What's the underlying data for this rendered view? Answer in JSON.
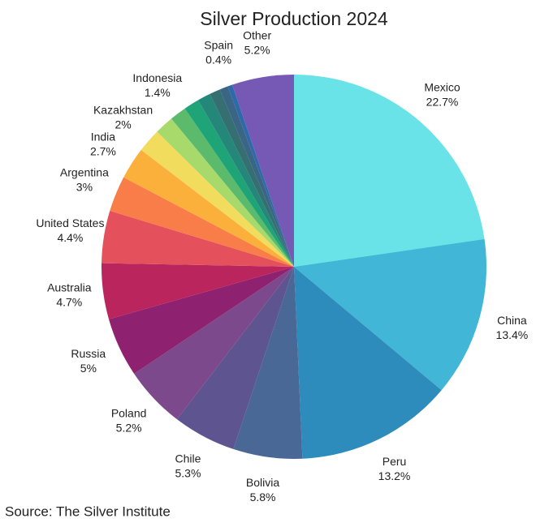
{
  "chart_data": {
    "type": "pie",
    "title": "Silver Production 2024",
    "categories": [
      "Mexico",
      "China",
      "Peru",
      "Bolivia",
      "Chile",
      "Poland",
      "Russia",
      "Australia",
      "United States",
      "Argentina",
      "India",
      "Kazakhstan",
      null,
      "Indonesia",
      null,
      null,
      null,
      null,
      "Spain",
      "Other"
    ],
    "values": [
      22.7,
      13.4,
      13.2,
      5.8,
      5.3,
      5.2,
      5,
      4.7,
      4.4,
      3,
      2.7,
      2,
      1.6,
      1.4,
      1.3,
      1.1,
      0.9,
      0.7,
      0.4,
      5.2
    ],
    "value_labels": [
      "22.7%",
      "13.4%",
      "13.2%",
      "5.8%",
      "5.3%",
      "5.2%",
      "5%",
      "4.7%",
      "4.4%",
      "3%",
      "2.7%",
      "2%",
      null,
      "1.4%",
      null,
      null,
      null,
      null,
      "0.4%",
      "5.2%"
    ],
    "colors": [
      "#69e3e8",
      "#41b6d6",
      "#2e8cbd",
      "#4a6895",
      "#5e5490",
      "#7c4a8c",
      "#8f2270",
      "#bb255e",
      "#e4505b",
      "#f97d48",
      "#fbb03b",
      "#f2dc5d",
      "#a8d96b",
      "#5cba6c",
      "#1fa477",
      "#24877a",
      "#366f71",
      "#3a6585",
      "#2f6aa8",
      "#7659b5"
    ],
    "source": "Source: The Silver Institute"
  }
}
